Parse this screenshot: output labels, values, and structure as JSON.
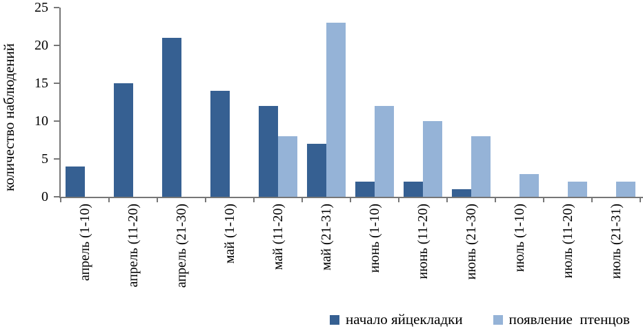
{
  "chart_data": {
    "type": "bar",
    "title": "",
    "xlabel": "",
    "ylabel": "количество наблюдений",
    "ylim": [
      0,
      25
    ],
    "yticks": [
      0,
      5,
      10,
      15,
      20,
      25
    ],
    "grid": false,
    "legend_position": "bottom-right",
    "categories": [
      "апрель (1-10)",
      "апрель (11-20)",
      "апрель (21-30)",
      "май (1-10)",
      "май (11-20)",
      "май (21-31)",
      "июнь (1-10)",
      "июнь (11-20)",
      "июнь (21-30)",
      "июль (1-10)",
      "июль (11-20)",
      "июль (21-31)"
    ],
    "series": [
      {
        "name": "начало яйцекладки",
        "color": "#366092",
        "values": [
          4,
          15,
          21,
          14,
          12,
          7,
          2,
          2,
          1,
          0,
          0,
          0
        ]
      },
      {
        "name": "появление  птенцов",
        "color": "#95B3D7",
        "values": [
          0,
          0,
          0,
          0,
          8,
          23,
          12,
          10,
          8,
          3,
          2,
          2
        ]
      }
    ]
  }
}
